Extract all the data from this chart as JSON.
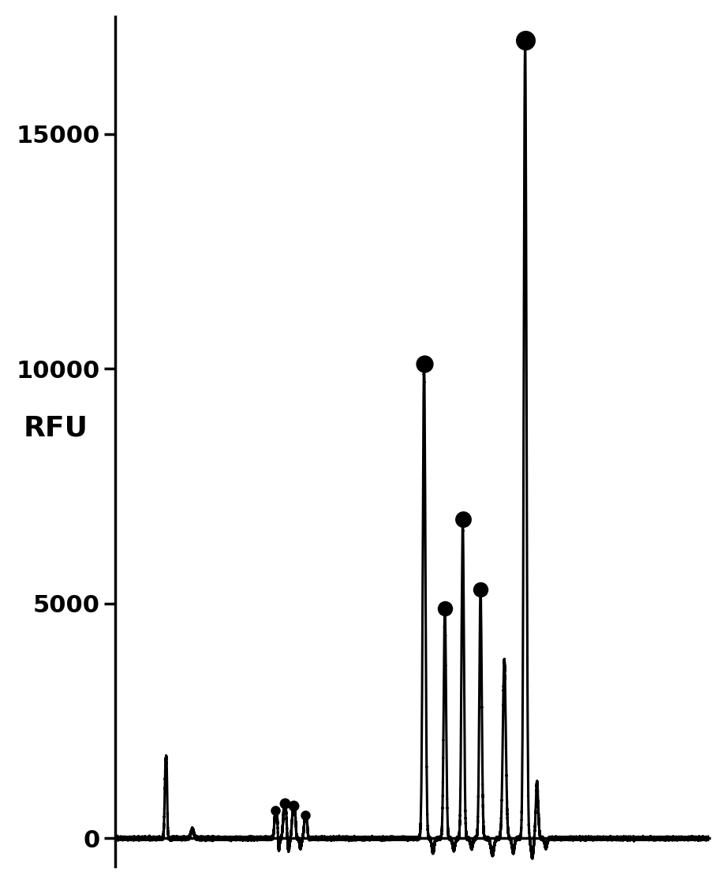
{
  "ylabel": "RFU",
  "ylim": [
    -600,
    17500
  ],
  "yticks": [
    0,
    5000,
    10000,
    15000
  ],
  "background_color": "#ffffff",
  "line_color": "#000000",
  "xlim": [
    0,
    100
  ],
  "linewidth": 2.2,
  "spine_linewidth": 2.5,
  "tick_labelsize": 22,
  "ylabel_fontsize": 26,
  "fig_width": 9.2,
  "fig_height": 11.19,
  "ytick_fontweight": "bold",
  "ylabel_rotation": 0
}
